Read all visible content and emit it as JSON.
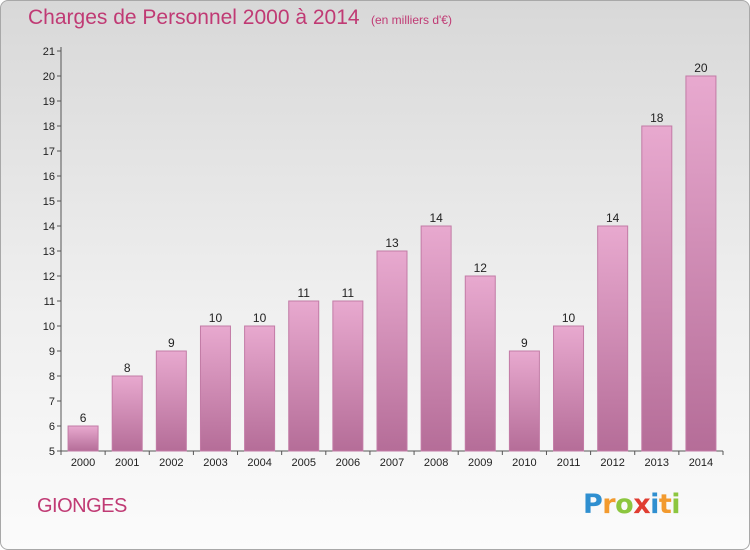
{
  "title": "Charges de Personnel 2000 à 2014",
  "subtitle": "(en milliers d'€)",
  "commune": "GIONGES",
  "logo": {
    "letters": [
      "P",
      "r",
      "o",
      "x",
      "i",
      "t",
      "i"
    ],
    "colors": [
      "#2f8fd0",
      "#f29a2e",
      "#8cc63f",
      "#e03c31",
      "#2f8fd0",
      "#f29a2e",
      "#8cc63f"
    ]
  },
  "colors": {
    "bar_top": "#e8a9cf",
    "bar_bottom": "#b56d98",
    "bar_edge": "#c27ba6",
    "title": "#c03a74"
  },
  "chart_data": {
    "type": "bar",
    "categories": [
      "2000",
      "2001",
      "2002",
      "2003",
      "2004",
      "2005",
      "2006",
      "2007",
      "2008",
      "2009",
      "2010",
      "2011",
      "2012",
      "2013",
      "2014"
    ],
    "values": [
      6,
      8,
      9,
      10,
      10,
      11,
      11,
      13,
      14,
      12,
      9,
      10,
      14,
      18,
      20
    ],
    "ylim": [
      5,
      21
    ],
    "yticks": [
      5,
      6,
      7,
      8,
      9,
      10,
      11,
      12,
      13,
      14,
      15,
      16,
      17,
      18,
      19,
      20,
      21
    ],
    "grid": false,
    "legend": "none"
  }
}
